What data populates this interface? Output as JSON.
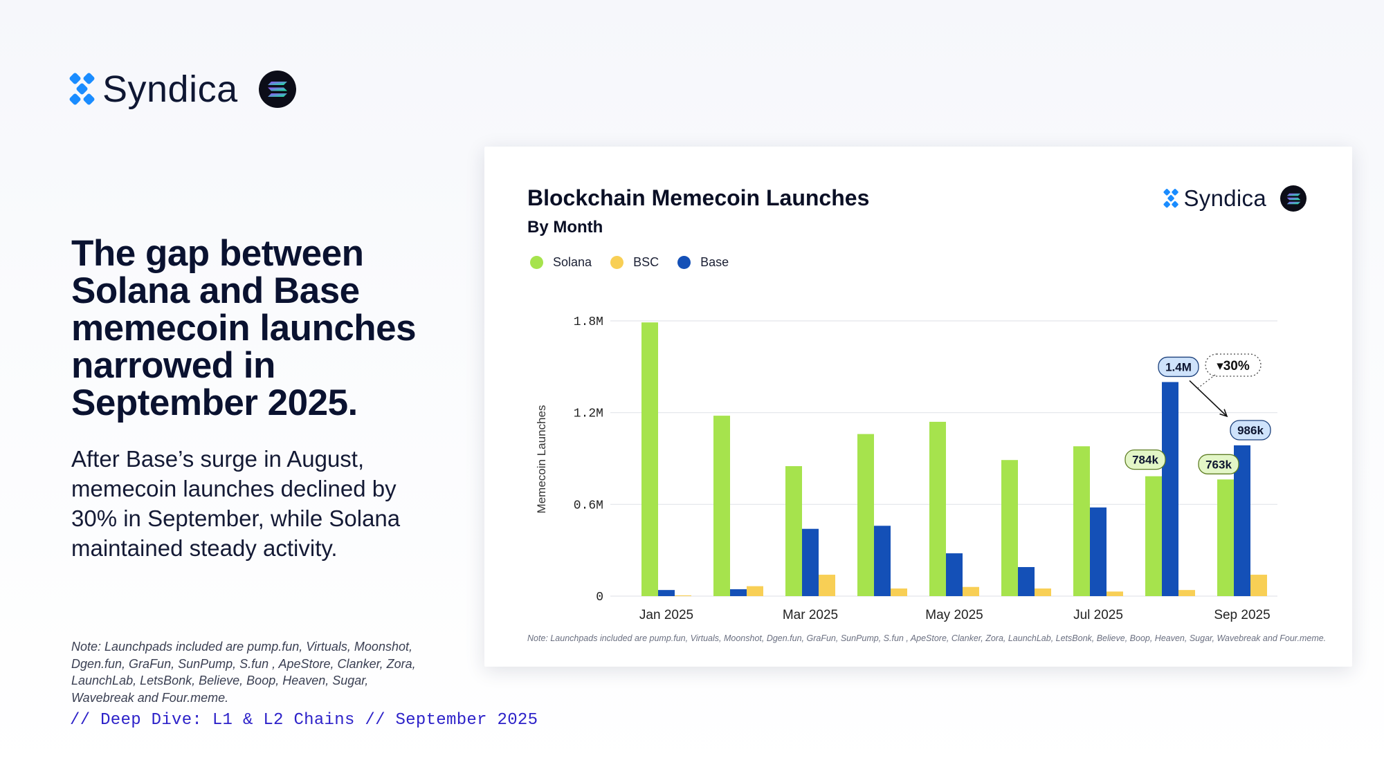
{
  "brand": {
    "name": "Syndica",
    "logo_icon": "syndica-logo-icon",
    "chain_badge_icon": "solana-logo-icon"
  },
  "headline": "The gap between Solana and Base memecoin launches narrowed in September 2025.",
  "subtext": "After Base’s surge in August, memecoin launches declined by 30% in September, while Solana maintained steady activity.",
  "note": "Note: Launchpads included are pump.fun, Virtuals, Moonshot, Dgen.fun, GraFun, SunPump, S.fun , ApeStore, Clanker, Zora, LaunchLab, LetsBonk, Believe, Boop, Heaven, Sugar, Wavebreak and Four.meme.",
  "footer": "// Deep Dive: L1 & L2 Chains // September 2025",
  "colors": {
    "solana": "#a6e34d",
    "bsc": "#f8cf55",
    "base": "#1450b7",
    "accent": "#2d22c9"
  },
  "chart_data": {
    "type": "bar",
    "title": "Blockchain Memecoin Launches",
    "subtitle": "By Month",
    "ylabel": "Memecoin Launches",
    "xlabel": "",
    "ylim": [
      0,
      1800000
    ],
    "y_ticks": [
      {
        "value": 0,
        "label": "0"
      },
      {
        "value": 600000,
        "label": "0.6M"
      },
      {
        "value": 1200000,
        "label": "1.2M"
      },
      {
        "value": 1800000,
        "label": "1.8M"
      }
    ],
    "categories": [
      "Jan 2025",
      "Feb 2025",
      "Mar 2025",
      "Apr 2025",
      "May 2025",
      "Jun 2025",
      "Jul 2025",
      "Aug 2025",
      "Sep 2025"
    ],
    "x_tick_labels": [
      "Jan 2025",
      "",
      "Mar 2025",
      "",
      "May 2025",
      "",
      "Jul 2025",
      "",
      "Sep 2025"
    ],
    "series": [
      {
        "name": "Solana",
        "color": "#a6e34d",
        "values": [
          1790000,
          1180000,
          850000,
          1060000,
          1140000,
          890000,
          980000,
          784000,
          763000
        ]
      },
      {
        "name": "Base",
        "color": "#1450b7",
        "values": [
          40000,
          45000,
          440000,
          460000,
          280000,
          190000,
          580000,
          1400000,
          986000
        ]
      },
      {
        "name": "BSC",
        "color": "#f8cf55",
        "values": [
          5000,
          65000,
          140000,
          50000,
          60000,
          50000,
          30000,
          40000,
          140000
        ]
      }
    ],
    "legend_order": [
      "Solana",
      "BSC",
      "Base"
    ],
    "legend_position": "top-left",
    "grid": true,
    "annotations": [
      {
        "text": "784k",
        "category": "Aug 2025",
        "series": "Solana",
        "value": 784000
      },
      {
        "text": "1.4M",
        "category": "Aug 2025",
        "series": "Base",
        "value": 1400000
      },
      {
        "text": "763k",
        "category": "Sep 2025",
        "series": "Solana",
        "value": 763000
      },
      {
        "text": "986k",
        "category": "Sep 2025",
        "series": "Base",
        "value": 986000
      },
      {
        "text": "▾30%",
        "from_category": "Aug 2025",
        "to_category": "Sep 2025",
        "series": "Base"
      }
    ]
  }
}
